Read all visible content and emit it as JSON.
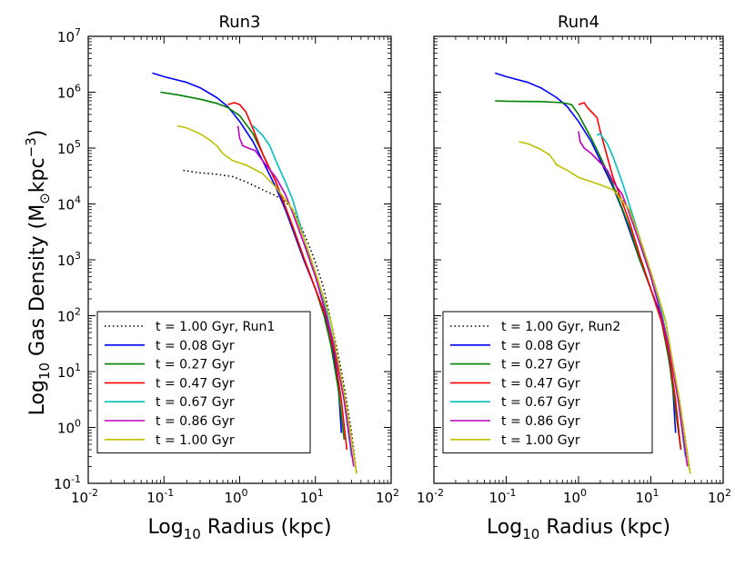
{
  "figure": {
    "ylabel_main": "Log",
    "ylabel_sub": "10",
    "ylabel_rest": " Gas Density (M",
    "ylabel_sun": "⊙",
    "ylabel_unit": "kpc",
    "ylabel_exp": "−3",
    "ylabel_close": ")"
  },
  "chart_data": [
    {
      "type": "line",
      "title": "Run3",
      "xlabel_main": "Log",
      "xlabel_sub": "10",
      "xlabel_rest": " Radius (kpc)",
      "xscale": "log",
      "yscale": "log",
      "xlim": [
        0.01,
        100
      ],
      "ylim": [
        0.1,
        10000000
      ],
      "xticks": [
        {
          "v": 0.01,
          "base": "10",
          "exp": "-2"
        },
        {
          "v": 0.1,
          "base": "10",
          "exp": "-1"
        },
        {
          "v": 1,
          "base": "10",
          "exp": "0"
        },
        {
          "v": 10,
          "base": "10",
          "exp": "1"
        },
        {
          "v": 100,
          "base": "10",
          "exp": "2"
        }
      ],
      "yticks": [
        {
          "v": 0.1,
          "base": "10",
          "exp": "-1"
        },
        {
          "v": 1,
          "base": "10",
          "exp": "0"
        },
        {
          "v": 10,
          "base": "10",
          "exp": "1"
        },
        {
          "v": 100,
          "base": "10",
          "exp": "2"
        },
        {
          "v": 1000,
          "base": "10",
          "exp": "3"
        },
        {
          "v": 10000,
          "base": "10",
          "exp": "4"
        },
        {
          "v": 100000,
          "base": "10",
          "exp": "5"
        },
        {
          "v": 1000000,
          "base": "10",
          "exp": "6"
        },
        {
          "v": 10000000,
          "base": "10",
          "exp": "7"
        }
      ],
      "show_yticklabels": true,
      "legend_position": "lower-left",
      "series": [
        {
          "name": "t = 1.00 Gyr, Run1",
          "color": "#000000",
          "dash": "dotted",
          "points": [
            [
              0.18,
              40000
            ],
            [
              0.3,
              36000
            ],
            [
              0.5,
              34000
            ],
            [
              0.8,
              31000
            ],
            [
              1.2,
              25000
            ],
            [
              2,
              18000
            ],
            [
              3,
              14000
            ],
            [
              4,
              11000
            ],
            [
              5,
              8000
            ],
            [
              6,
              5000
            ],
            [
              8,
              2000
            ],
            [
              10,
              900
            ],
            [
              13,
              300
            ],
            [
              16,
              80
            ],
            [
              20,
              20
            ],
            [
              25,
              4
            ],
            [
              30,
              0.8
            ],
            [
              35,
              0.15
            ]
          ]
        },
        {
          "name": "t = 0.08 Gyr",
          "color": "#0000ff",
          "dash": "solid",
          "points": [
            [
              0.07,
              2200000
            ],
            [
              0.1,
              1900000
            ],
            [
              0.2,
              1500000
            ],
            [
              0.3,
              1200000
            ],
            [
              0.5,
              800000
            ],
            [
              0.7,
              550000
            ],
            [
              1,
              300000
            ],
            [
              1.5,
              130000
            ],
            [
              2,
              60000
            ],
            [
              3,
              20000
            ],
            [
              4,
              8000
            ],
            [
              5,
              3500
            ],
            [
              7,
              1000
            ],
            [
              10,
              300
            ],
            [
              13,
              120
            ],
            [
              16,
              40
            ],
            [
              20,
              6
            ],
            [
              22,
              0.8
            ]
          ]
        },
        {
          "name": "t = 0.27 Gyr",
          "color": "#008000",
          "dash": "solid",
          "points": [
            [
              0.09,
              1000000
            ],
            [
              0.15,
              900000
            ],
            [
              0.3,
              750000
            ],
            [
              0.5,
              630000
            ],
            [
              0.7,
              530000
            ],
            [
              1,
              380000
            ],
            [
              1.5,
              180000
            ],
            [
              2,
              80000
            ],
            [
              3,
              25000
            ],
            [
              5,
              4000
            ],
            [
              7,
              1100
            ],
            [
              10,
              300
            ],
            [
              13,
              100
            ],
            [
              16,
              30
            ],
            [
              20,
              5
            ],
            [
              24,
              0.6
            ]
          ]
        },
        {
          "name": "t = 0.47 Gyr",
          "color": "#ff0000",
          "dash": "solid",
          "points": [
            [
              0.7,
              600000
            ],
            [
              0.85,
              650000
            ],
            [
              1,
              600000
            ],
            [
              1.2,
              450000
            ],
            [
              1.5,
              220000
            ],
            [
              2,
              80000
            ],
            [
              3,
              25000
            ],
            [
              5,
              4000
            ],
            [
              7,
              1100
            ],
            [
              10,
              300
            ],
            [
              14,
              90
            ],
            [
              18,
              20
            ],
            [
              22,
              3
            ],
            [
              26,
              0.4
            ]
          ]
        },
        {
          "name": "t = 0.67 Gyr",
          "color": "#00bfbf",
          "dash": "solid",
          "points": [
            [
              1.5,
              250000
            ],
            [
              2,
              170000
            ],
            [
              2.5,
              110000
            ],
            [
              3,
              60000
            ],
            [
              4,
              25000
            ],
            [
              5,
              12000
            ],
            [
              7,
              2500
            ],
            [
              10,
              500
            ],
            [
              14,
              120
            ],
            [
              18,
              25
            ],
            [
              24,
              3
            ],
            [
              30,
              0.3
            ]
          ]
        },
        {
          "name": "t = 0.86 Gyr",
          "color": "#bf00bf",
          "dash": "solid",
          "points": [
            [
              0.95,
              250000
            ],
            [
              1,
              150000
            ],
            [
              1.1,
              110000
            ],
            [
              1.3,
              100000
            ],
            [
              1.6,
              90000
            ],
            [
              2,
              60000
            ],
            [
              3,
              30000
            ],
            [
              4,
              15000
            ],
            [
              5,
              7000
            ],
            [
              7,
              2000
            ],
            [
              10,
              500
            ],
            [
              14,
              100
            ],
            [
              18,
              25
            ],
            [
              24,
              3
            ],
            [
              32,
              0.2
            ]
          ]
        },
        {
          "name": "t = 1.00 Gyr",
          "color": "#bfbf00",
          "dash": "solid",
          "points": [
            [
              0.15,
              250000
            ],
            [
              0.2,
              230000
            ],
            [
              0.3,
              180000
            ],
            [
              0.4,
              140000
            ],
            [
              0.5,
              110000
            ],
            [
              0.6,
              80000
            ],
            [
              0.8,
              60000
            ],
            [
              1.2,
              50000
            ],
            [
              2,
              35000
            ],
            [
              3,
              20000
            ],
            [
              5,
              8000
            ],
            [
              7,
              2500
            ],
            [
              10,
              600
            ],
            [
              13,
              200
            ],
            [
              16,
              80
            ],
            [
              20,
              15
            ],
            [
              25,
              3
            ],
            [
              30,
              0.6
            ],
            [
              35,
              0.15
            ]
          ]
        }
      ]
    },
    {
      "type": "line",
      "title": "Run4",
      "xlabel_main": "Log",
      "xlabel_sub": "10",
      "xlabel_rest": " Radius (kpc)",
      "xscale": "log",
      "yscale": "log",
      "xlim": [
        0.01,
        100
      ],
      "ylim": [
        0.1,
        10000000
      ],
      "xticks": [
        {
          "v": 0.01,
          "base": "10",
          "exp": "-2"
        },
        {
          "v": 0.1,
          "base": "10",
          "exp": "-1"
        },
        {
          "v": 1,
          "base": "10",
          "exp": "0"
        },
        {
          "v": 10,
          "base": "10",
          "exp": "1"
        },
        {
          "v": 100,
          "base": "10",
          "exp": "2"
        }
      ],
      "yticks": [
        {
          "v": 0.1
        },
        {
          "v": 1
        },
        {
          "v": 10
        },
        {
          "v": 100
        },
        {
          "v": 1000
        },
        {
          "v": 10000
        },
        {
          "v": 100000
        },
        {
          "v": 1000000
        },
        {
          "v": 10000000
        }
      ],
      "show_yticklabels": false,
      "legend_position": "lower-left",
      "series": [
        {
          "name": "t = 1.00 Gyr, Run2",
          "color": "#000000",
          "dash": "dotted",
          "points": [
            [
              3,
              20000
            ],
            [
              5,
              8000
            ],
            [
              7,
              2500
            ],
            [
              10,
              600
            ],
            [
              13,
              200
            ],
            [
              16,
              80
            ],
            [
              20,
              15
            ],
            [
              25,
              3
            ],
            [
              30,
              0.6
            ],
            [
              35,
              0.15
            ]
          ]
        },
        {
          "name": "t = 0.08 Gyr",
          "color": "#0000ff",
          "dash": "solid",
          "points": [
            [
              0.07,
              2200000
            ],
            [
              0.1,
              1900000
            ],
            [
              0.2,
              1500000
            ],
            [
              0.3,
              1200000
            ],
            [
              0.5,
              800000
            ],
            [
              0.7,
              550000
            ],
            [
              1,
              300000
            ],
            [
              1.5,
              130000
            ],
            [
              2,
              60000
            ],
            [
              3,
              20000
            ],
            [
              4,
              8000
            ],
            [
              5,
              3500
            ],
            [
              7,
              1000
            ],
            [
              10,
              300
            ],
            [
              13,
              120
            ],
            [
              16,
              40
            ],
            [
              20,
              6
            ],
            [
              22,
              0.8
            ]
          ]
        },
        {
          "name": "t = 0.27 Gyr",
          "color": "#008000",
          "dash": "solid",
          "points": [
            [
              0.07,
              700000
            ],
            [
              0.1,
              690000
            ],
            [
              0.3,
              680000
            ],
            [
              0.6,
              650000
            ],
            [
              0.8,
              600000
            ],
            [
              1,
              400000
            ],
            [
              1.5,
              150000
            ],
            [
              2,
              70000
            ],
            [
              3,
              22000
            ],
            [
              5,
              4000
            ],
            [
              7,
              1000
            ],
            [
              10,
              300
            ],
            [
              14,
              80
            ],
            [
              18,
              15
            ],
            [
              22,
              2
            ],
            [
              26,
              0.4
            ]
          ]
        },
        {
          "name": "t = 0.47 Gyr",
          "color": "#ff0000",
          "dash": "solid",
          "points": [
            [
              1,
              600000
            ],
            [
              1.2,
              650000
            ],
            [
              1.3,
              550000
            ],
            [
              1.5,
              450000
            ],
            [
              1.8,
              350000
            ],
            [
              2,
              200000
            ],
            [
              2.5,
              70000
            ],
            [
              3,
              30000
            ],
            [
              5,
              5000
            ],
            [
              7,
              1200
            ],
            [
              10,
              300
            ],
            [
              14,
              80
            ],
            [
              18,
              20
            ],
            [
              22,
              3
            ],
            [
              26,
              0.4
            ]
          ]
        },
        {
          "name": "t = 0.67 Gyr",
          "color": "#00bfbf",
          "dash": "solid",
          "points": [
            [
              1.8,
              170000
            ],
            [
              2,
              180000
            ],
            [
              2.2,
              150000
            ],
            [
              2.5,
              120000
            ],
            [
              3,
              70000
            ],
            [
              4,
              25000
            ],
            [
              5,
              10000
            ],
            [
              7,
              2500
            ],
            [
              10,
              500
            ],
            [
              14,
              120
            ],
            [
              18,
              25
            ],
            [
              24,
              3
            ],
            [
              30,
              0.3
            ]
          ]
        },
        {
          "name": "t = 0.86 Gyr",
          "color": "#bf00bf",
          "dash": "solid",
          "points": [
            [
              1,
              200000
            ],
            [
              1.05,
              130000
            ],
            [
              1.2,
              100000
            ],
            [
              1.5,
              80000
            ],
            [
              2,
              55000
            ],
            [
              2.5,
              40000
            ],
            [
              3,
              25000
            ],
            [
              4,
              15000
            ],
            [
              5,
              7000
            ],
            [
              7,
              2000
            ],
            [
              10,
              500
            ],
            [
              14,
              100
            ],
            [
              18,
              25
            ],
            [
              24,
              3
            ],
            [
              32,
              0.2
            ]
          ]
        },
        {
          "name": "t = 1.00 Gyr",
          "color": "#bfbf00",
          "dash": "solid",
          "points": [
            [
              0.15,
              130000
            ],
            [
              0.2,
              120000
            ],
            [
              0.3,
              95000
            ],
            [
              0.4,
              75000
            ],
            [
              0.5,
              50000
            ],
            [
              0.7,
              40000
            ],
            [
              1,
              30000
            ],
            [
              2,
              22000
            ],
            [
              3,
              18000
            ],
            [
              5,
              8000
            ],
            [
              7,
              2500
            ],
            [
              10,
              600
            ],
            [
              13,
              200
            ],
            [
              16,
              80
            ],
            [
              20,
              15
            ],
            [
              25,
              3
            ],
            [
              30,
              0.6
            ],
            [
              35,
              0.15
            ]
          ]
        }
      ]
    }
  ]
}
